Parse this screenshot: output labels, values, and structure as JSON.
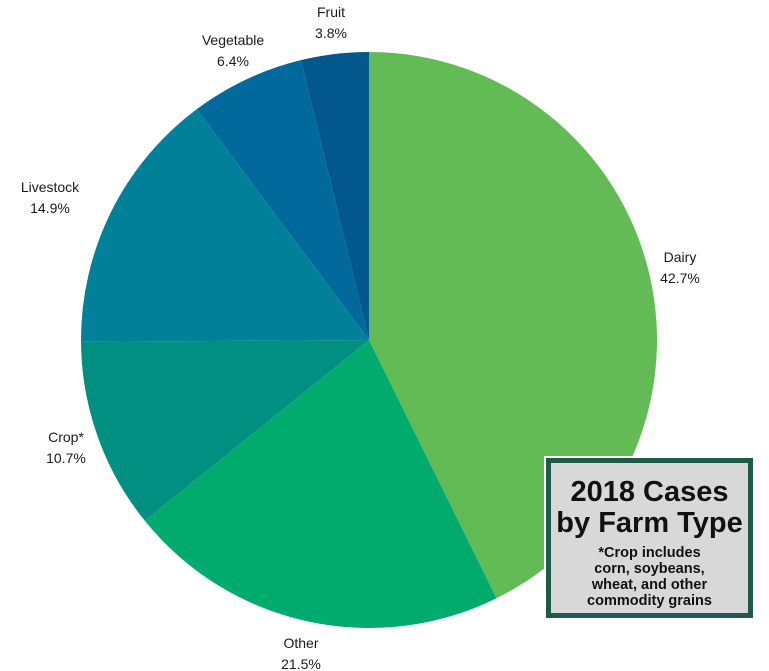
{
  "chart_data": {
    "type": "pie",
    "slices": [
      {
        "label": "Dairy",
        "value": 42.7,
        "value_label": "42.7%",
        "color": "#62bb55"
      },
      {
        "label": "Other",
        "value": 21.5,
        "value_label": "21.5%",
        "color": "#01ab6e"
      },
      {
        "label": "Crop*",
        "value": 10.7,
        "value_label": "10.7%",
        "color": "#008f80"
      },
      {
        "label": "Livestock",
        "value": 14.9,
        "value_label": "14.9%",
        "color": "#00819a"
      },
      {
        "label": "Vegetable",
        "value": 6.4,
        "value_label": "6.4%",
        "color": "#01699c"
      },
      {
        "label": "Fruit",
        "value": 3.8,
        "value_label": "3.8%",
        "color": "#02578c"
      }
    ],
    "start": "top",
    "direction": "clockwise",
    "legend": "none"
  },
  "title_box": {
    "line1": "2018 Cases",
    "line2": "by Farm Type",
    "note_lines": [
      "*Crop includes",
      "corn, soybeans,",
      "wheat, and other",
      "commodity grains"
    ],
    "background": "#d8d8d8",
    "border_color": "#1f5a4a"
  }
}
